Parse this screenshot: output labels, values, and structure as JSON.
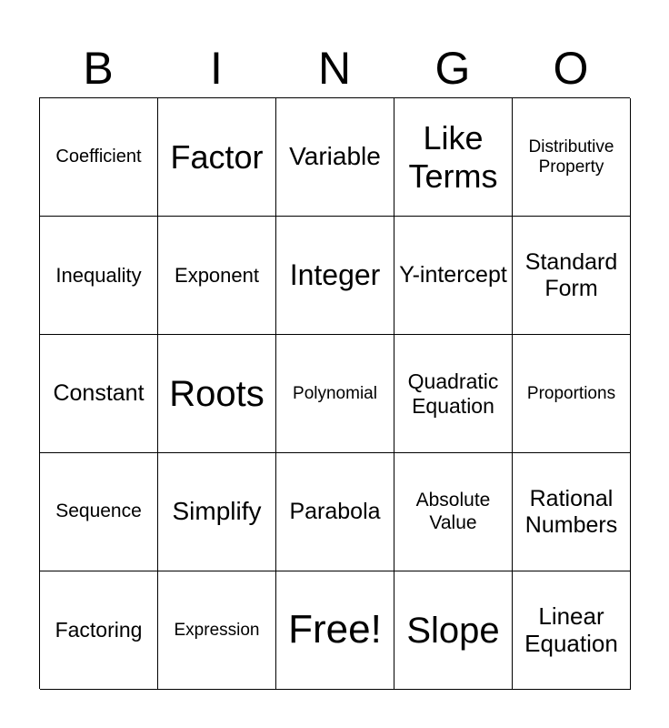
{
  "header": [
    "B",
    "I",
    "N",
    "G",
    "O"
  ],
  "cells": [
    [
      "Coefficient",
      "Factor",
      "Variable",
      "Like Terms",
      "Distributive Property"
    ],
    [
      "Inequality",
      "Exponent",
      "Integer",
      "Y-intercept",
      "Standard Form"
    ],
    [
      "Constant",
      "Roots",
      "Polynomial",
      "Quadratic Equation",
      "Proportions"
    ],
    [
      "Sequence",
      "Simplify",
      "Parabola",
      "Absolute Value",
      "Rational Numbers"
    ],
    [
      "Factoring",
      "Expression",
      "Free!",
      "Slope",
      "Linear Equation"
    ]
  ]
}
